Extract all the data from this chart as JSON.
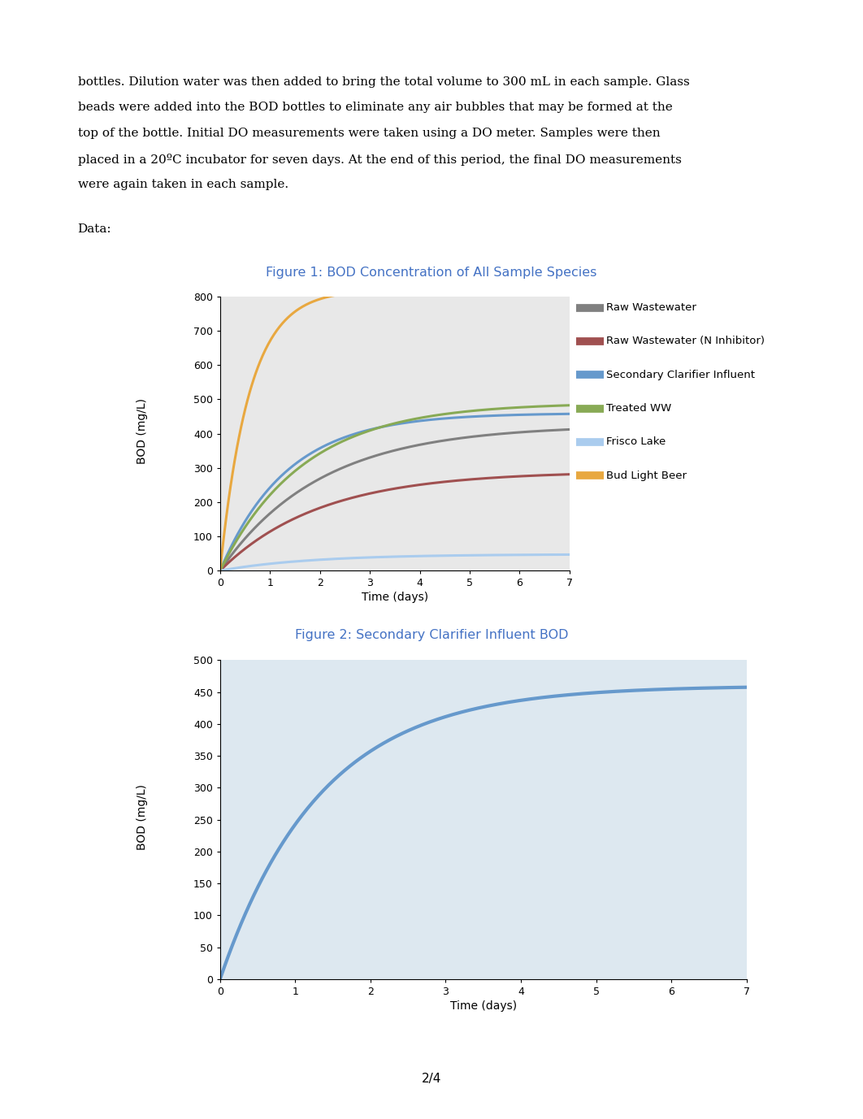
{
  "page_text": "bottles. Dilution water was then added to bring the total volume to 300 mL in each sample. Glass\nbeads were added into the BOD bottles to eliminate any air bubbles that may be formed at the\ntop of the bottle. Initial DO measurements were taken using a DO meter. Samples were then\nplaced in a 20ºC incubator for seven days. At the end of this period, the final DO measurements\nwere again taken in each sample.",
  "data_label": "Data:",
  "fig1_title": "Figure 1: BOD Concentration of All Sample Species",
  "fig1_ylabel": "BOD (mg/L)",
  "fig1_xlabel": "Time (days)",
  "fig1_ylim": [
    0,
    800
  ],
  "fig1_yticks": [
    0,
    100,
    200,
    300,
    400,
    500,
    600,
    700,
    800
  ],
  "fig1_xlim": [
    0,
    7
  ],
  "fig1_xticks": [
    0,
    1,
    2,
    3,
    4,
    5,
    6,
    7
  ],
  "fig2_title": "Figure 2: Secondary Clarifier Influent BOD",
  "fig2_ylabel": "BOD (mg/L)",
  "fig2_xlabel": "Time (days)",
  "fig2_ylim": [
    0,
    500
  ],
  "fig2_yticks": [
    0,
    50,
    100,
    150,
    200,
    250,
    300,
    350,
    400,
    450,
    500
  ],
  "fig2_xlim": [
    0,
    7
  ],
  "fig2_xticks": [
    0,
    1,
    2,
    3,
    4,
    5,
    6,
    7
  ],
  "series": [
    {
      "label": "Raw Wastewater",
      "color": "#808080",
      "L0": 425,
      "k": 0.5
    },
    {
      "label": "Raw Wastewater (N Inhibitor)",
      "color": "#a05050",
      "L0": 290,
      "k": 0.5
    },
    {
      "label": "Secondary Clarifier Influent",
      "color": "#6699cc",
      "L0": 460,
      "k": 0.75
    },
    {
      "label": "Treated WW",
      "color": "#88aa55",
      "L0": 490,
      "k": 0.6
    },
    {
      "label": "Frisco Lake",
      "color": "#aaccee",
      "L0": 48,
      "k": 0.55
    },
    {
      "label": "Bud Light Beer",
      "color": "#e8a840",
      "L0": 820,
      "k": 1.7
    }
  ],
  "title_color": "#4472c4",
  "background_color": "#ffffff",
  "plot_bg_color": "#e8e8e8",
  "fig2_plot_bg": "#dde8f0",
  "page_number": "2/4",
  "text_fontsize": 11.0,
  "title_fontsize": 11.5,
  "axis_label_fontsize": 10,
  "tick_fontsize": 9,
  "legend_fontsize": 9.5
}
